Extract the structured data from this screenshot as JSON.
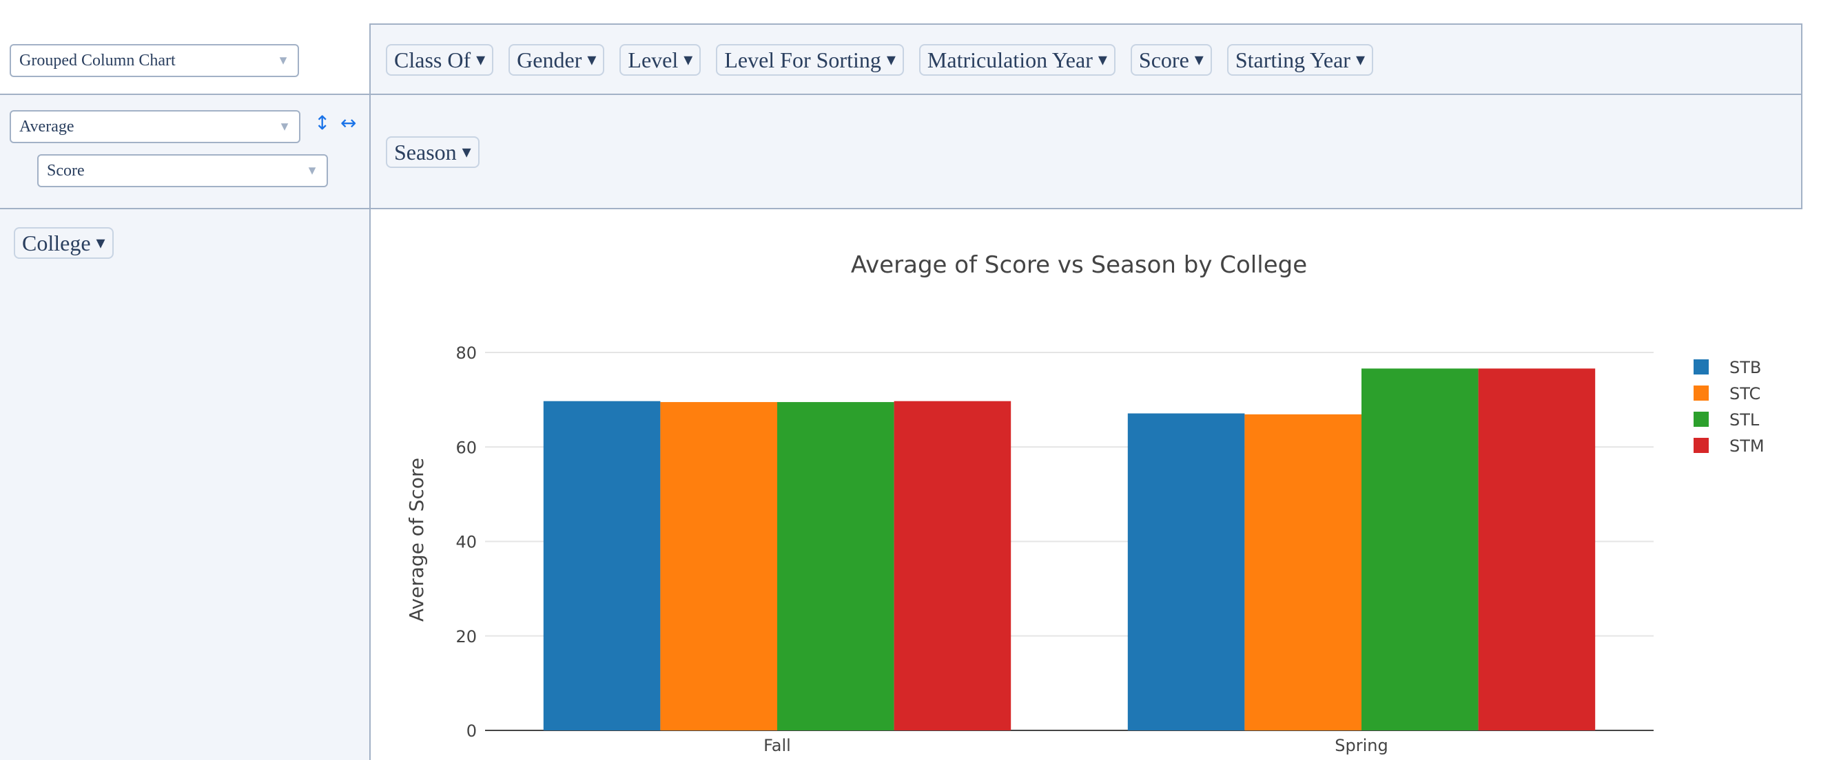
{
  "renderer": {
    "type_select": "Grouped Column Chart",
    "aggregator_select": "Average",
    "value_select": "Score"
  },
  "attributes": [
    {
      "label": "Class Of"
    },
    {
      "label": "Gender"
    },
    {
      "label": "Level"
    },
    {
      "label": "Level For Sorting"
    },
    {
      "label": "Matriculation Year"
    },
    {
      "label": "Score"
    },
    {
      "label": "Starting Year"
    }
  ],
  "col_attrs": [
    {
      "label": "Season"
    }
  ],
  "row_attrs": [
    {
      "label": "College"
    }
  ],
  "icons": {
    "sort_rows": "vertical-arrows-icon",
    "sort_cols": "horizontal-arrows-icon",
    "dropdown": "triangle-down-icon"
  },
  "colors": {
    "STB": "#1f77b4",
    "STC": "#ff7f0e",
    "STL": "#2ca02c",
    "STM": "#d62728"
  },
  "chart_data": {
    "type": "bar",
    "title": "Average of Score vs Season by College",
    "xlabel": "",
    "ylabel": "Average of Score",
    "categories": [
      "Fall",
      "Spring"
    ],
    "series": [
      {
        "name": "STB",
        "values": [
          69.7,
          67.1
        ]
      },
      {
        "name": "STC",
        "values": [
          69.5,
          66.9
        ]
      },
      {
        "name": "STL",
        "values": [
          69.5,
          76.6
        ]
      },
      {
        "name": "STM",
        "values": [
          69.7,
          76.6
        ]
      }
    ],
    "ylim": [
      0,
      80
    ],
    "yticks": [
      0,
      20,
      40,
      60,
      80
    ],
    "grid": true,
    "legend": "right"
  }
}
